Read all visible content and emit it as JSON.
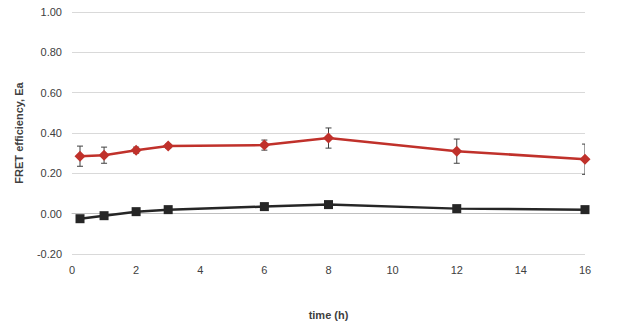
{
  "chart_data": {
    "type": "line",
    "x_label": "time (h)",
    "y_label": "FRET efficiency, Ea",
    "xlim": [
      0,
      16
    ],
    "xticks": [
      0,
      2,
      4,
      6,
      8,
      10,
      12,
      14,
      16
    ],
    "ylim": [
      -0.2,
      1.0
    ],
    "yticks": [
      {
        "value": -0.2,
        "label": "-0.20"
      },
      {
        "value": 0,
        "label": "0.00"
      },
      {
        "value": 0.2,
        "label": "0.20"
      },
      {
        "value": 0.4,
        "label": "0.40"
      },
      {
        "value": 0.6,
        "label": "0.60"
      },
      {
        "value": 0.8,
        "label": "0.80"
      },
      {
        "value": 1.0,
        "label": "1.00"
      }
    ],
    "grid": true,
    "x": [
      0.25,
      1,
      2,
      3,
      6,
      8,
      12,
      16
    ],
    "series": [
      {
        "color": "#c0312b",
        "marker": "diamond",
        "line_style": "solid",
        "values": [
          0.285,
          0.29,
          0.315,
          0.335,
          0.34,
          0.375,
          0.31,
          0.27
        ],
        "errors": [
          0.05,
          0.04,
          0.015,
          0.01,
          0.025,
          0.05,
          0.06,
          0.075
        ]
      },
      {
        "color": "#262626",
        "marker": "square",
        "line_style": "solid",
        "values": [
          -0.025,
          -0.01,
          0.01,
          0.02,
          0.035,
          0.045,
          0.025,
          0.02
        ]
      }
    ]
  }
}
